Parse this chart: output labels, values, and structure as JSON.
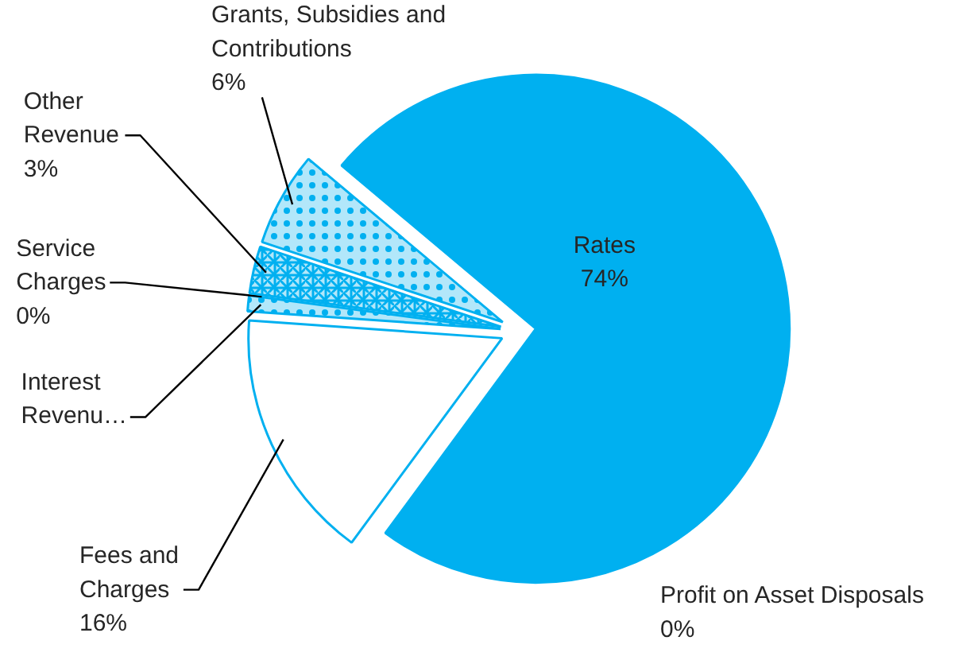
{
  "chart_data": {
    "type": "pie",
    "categories": [
      "Rates",
      "Fees and Charges",
      "Interest Revenu…",
      "Service Charges",
      "Other Revenue",
      "Grants, Subsidies and Contributions",
      "Profit on Asset Disposals"
    ],
    "values": [
      74,
      16,
      1,
      0,
      3,
      6,
      0
    ],
    "value_labels": [
      "74%",
      "16%",
      null,
      "0%",
      "3%",
      "6%",
      "0%"
    ],
    "colors": [
      "#00b0f0",
      "#00b0f0",
      "#00b0f0",
      "#00b0f0",
      "#00b0f0",
      "#00b0f0",
      "#00b0f0"
    ]
  }
}
